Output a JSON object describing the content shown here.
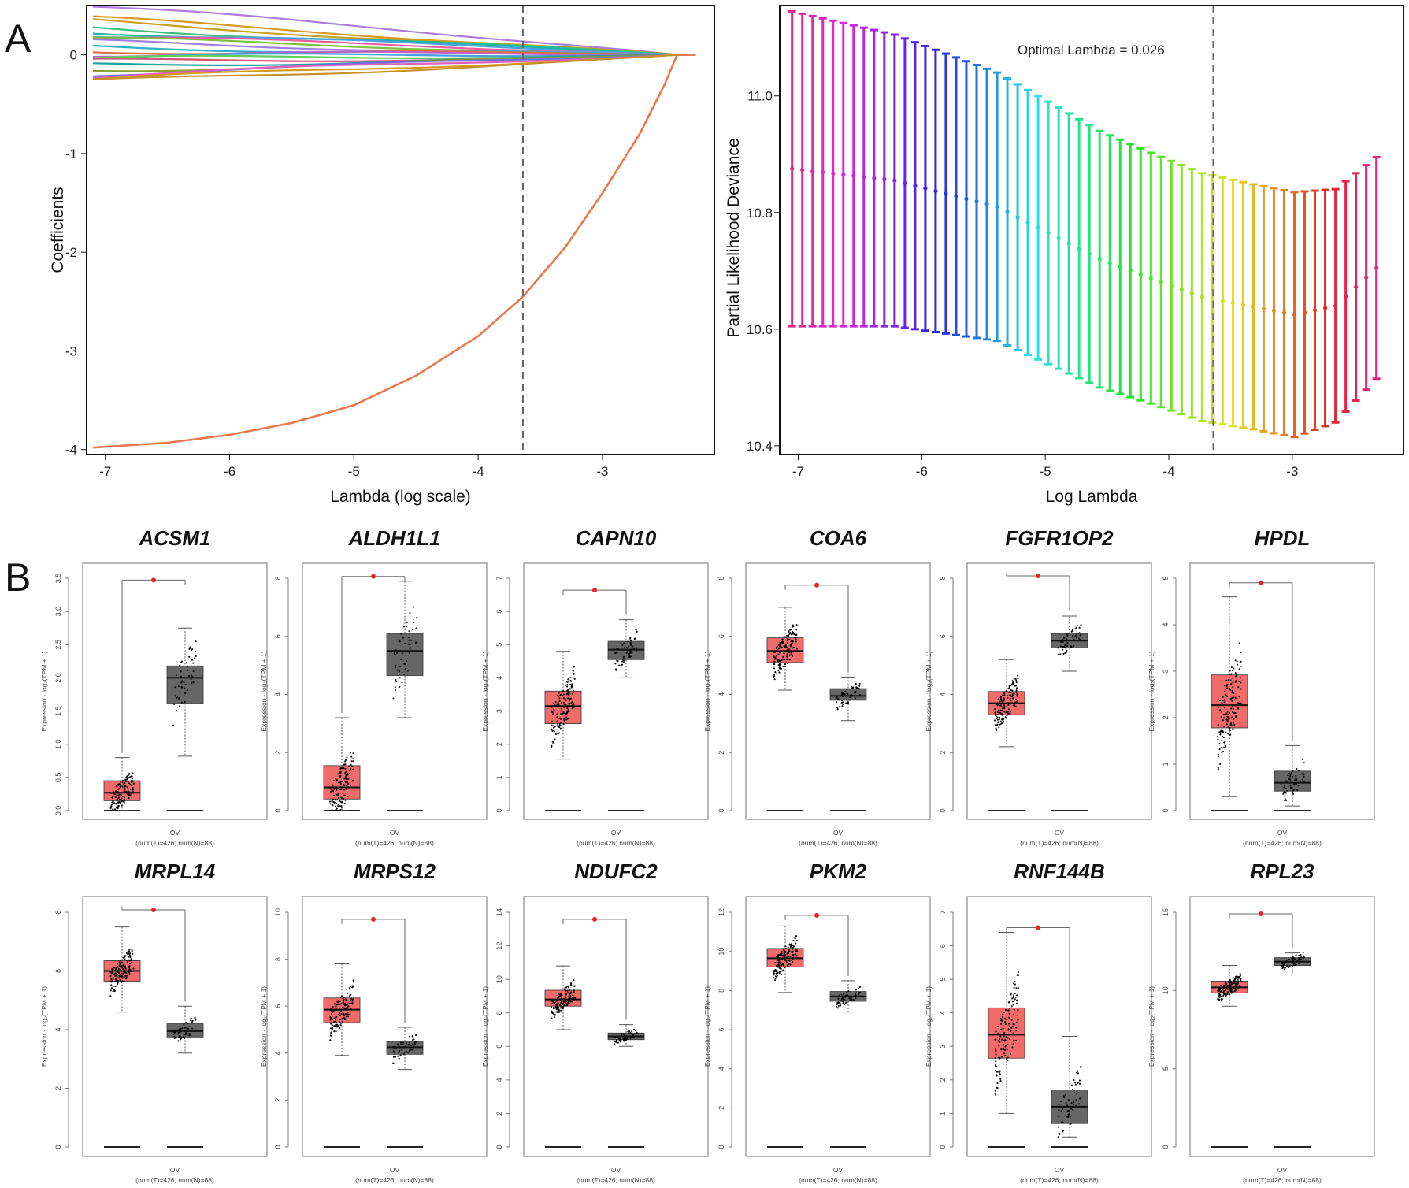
{
  "panel_labels": {
    "a": "A",
    "b": "B"
  },
  "colors": {
    "tumor": "#f26b6b",
    "normal": "#666666",
    "coef_highlight": "#e8784d",
    "frame": "#111111",
    "dash": "#666666",
    "sig_dot": "#ee2222"
  },
  "chart_data": [
    {
      "type": "line",
      "panel": "A-left",
      "xlabel": "Lambda (log scale)",
      "ylabel": "Coefficients",
      "xlim": [
        -7.15,
        -2.1
      ],
      "ylim": [
        -4.05,
        0.5
      ],
      "x_ticks": [
        -7,
        -6,
        -5,
        -4,
        -3
      ],
      "y_ticks": [
        0,
        -1,
        -2,
        -3,
        -4
      ],
      "cutoff_log_lambda": -3.64,
      "converge_log_lambda": -2.4,
      "series": [
        {
          "start": 0.49,
          "color": "#b07cdc"
        },
        {
          "start": 0.36,
          "color": "#d69a1f"
        },
        {
          "start": 0.33,
          "color": "#c8a020"
        },
        {
          "start": 0.28,
          "color": "#3fbf7f"
        },
        {
          "start": 0.25,
          "color": "#19b8a0"
        },
        {
          "start": 0.22,
          "color": "#4aa0e0"
        },
        {
          "start": 0.18,
          "color": "#e85e9e"
        },
        {
          "start": 0.15,
          "color": "#7fbf3f"
        },
        {
          "start": 0.12,
          "color": "#9f7fdf"
        },
        {
          "start": 0.08,
          "color": "#2fb0c8"
        },
        {
          "start": 0.05,
          "color": "#e07040"
        },
        {
          "start": 0.02,
          "color": "#c060d0"
        },
        {
          "start": -0.02,
          "color": "#3f9fdf"
        },
        {
          "start": -0.05,
          "color": "#5fcf5f"
        },
        {
          "start": -0.08,
          "color": "#d05080"
        },
        {
          "start": -0.11,
          "color": "#20a0a0"
        },
        {
          "start": -0.15,
          "color": "#8f9f2f"
        },
        {
          "start": -0.18,
          "color": "#6f6fdf"
        },
        {
          "start": -0.21,
          "color": "#df5fbf"
        },
        {
          "start": -0.26,
          "color": "#d69a1f"
        },
        {
          "start": -0.29,
          "color": "#c8902a"
        }
      ],
      "highlight_series": {
        "color": "#e8784d",
        "x": [
          -7.1,
          -6.5,
          -6.0,
          -5.5,
          -5.0,
          -4.5,
          -4.0,
          -3.64,
          -3.3,
          -3.0,
          -2.7,
          -2.5,
          -2.4
        ],
        "y": [
          -3.98,
          -3.93,
          -3.85,
          -3.73,
          -3.55,
          -3.25,
          -2.85,
          -2.45,
          -1.95,
          -1.4,
          -0.8,
          -0.3,
          0.0
        ]
      }
    },
    {
      "type": "scatter",
      "panel": "A-right",
      "xlabel": "Log Lambda",
      "ylabel": "Partial Likelihood Deviance",
      "annotation": "Optimal Lambda = 0.026",
      "optimal_log_lambda": -3.64,
      "xlim": [
        -7.15,
        -2.1
      ],
      "ylim": [
        10.385,
        11.155
      ],
      "x_ticks": [
        -7,
        -6,
        -5,
        -4,
        -3
      ],
      "y_ticks": [
        "10.4",
        "10.6",
        "10.8",
        "11.0"
      ],
      "x_start": -7.05,
      "x_step": 0.083,
      "count": 58,
      "mean_keypoints": [
        [
          0,
          10.875
        ],
        [
          10,
          10.855
        ],
        [
          20,
          10.81
        ],
        [
          30,
          10.72
        ],
        [
          40,
          10.655
        ],
        [
          49,
          10.625
        ],
        [
          53,
          10.64
        ],
        [
          57,
          10.705
        ]
      ],
      "error_keypoints": [
        [
          0,
          0.27
        ],
        [
          20,
          0.23
        ],
        [
          35,
          0.215
        ],
        [
          45,
          0.21
        ],
        [
          49,
          0.21
        ],
        [
          57,
          0.19
        ]
      ]
    }
  ],
  "boxplots": {
    "y_axis_label": "Expression - log₂(TPM + 1)",
    "x_label": "OV",
    "n_label": "(num(T)=426; num(N)=88)",
    "sig_marker": "*",
    "items": [
      {
        "gene": "ACSM1",
        "ymax": 3.5,
        "ticks": [
          "0.0",
          "0.5",
          "1.0",
          "1.5",
          "2.0",
          "2.5",
          "3.0",
          "3.5"
        ],
        "tumor": {
          "q1": 0.15,
          "median": 0.27,
          "q3": 0.45,
          "lo": 0.0,
          "hi": 0.8,
          "top": 1.75
        },
        "normal": {
          "q1": 1.62,
          "median": 2.0,
          "q3": 2.18,
          "lo": 0.82,
          "hi": 2.75,
          "top": 3.4
        }
      },
      {
        "gene": "ALDH1L1",
        "ymax": 8,
        "ticks": [
          "0",
          "2",
          "4",
          "6",
          "8"
        ],
        "tumor": {
          "q1": 0.4,
          "median": 0.8,
          "q3": 1.55,
          "lo": 0.0,
          "hi": 3.2,
          "top": 5.5
        },
        "normal": {
          "q1": 4.65,
          "median": 5.5,
          "q3": 6.1,
          "lo": 3.2,
          "hi": 7.9,
          "top": 7.9
        }
      },
      {
        "gene": "CAPN10",
        "ymax": 7,
        "ticks": [
          "0",
          "1",
          "2",
          "3",
          "4",
          "5",
          "6",
          "7"
        ],
        "tumor": {
          "q1": 2.62,
          "median": 3.15,
          "q3": 3.6,
          "lo": 1.55,
          "hi": 4.8,
          "top": 6.5
        },
        "normal": {
          "q1": 4.55,
          "median": 4.85,
          "q3": 5.1,
          "lo": 4.0,
          "hi": 5.75,
          "top": 5.75
        }
      },
      {
        "gene": "COA6",
        "ymax": 8,
        "ticks": [
          "0",
          "2",
          "4",
          "6",
          "8"
        ],
        "tumor": {
          "q1": 5.1,
          "median": 5.5,
          "q3": 5.95,
          "lo": 4.15,
          "hi": 7.0,
          "top": 7.6
        },
        "normal": {
          "q1": 3.8,
          "median": 3.95,
          "q3": 4.2,
          "lo": 3.1,
          "hi": 4.6,
          "top": 4.6
        }
      },
      {
        "gene": "FGFR1OP2",
        "ymax": 8,
        "ticks": [
          "0",
          "2",
          "4",
          "6",
          "8"
        ],
        "tumor": {
          "q1": 3.3,
          "median": 3.7,
          "q3": 4.1,
          "lo": 2.2,
          "hi": 5.2,
          "top": 8.2
        },
        "normal": {
          "q1": 5.6,
          "median": 5.85,
          "q3": 6.1,
          "lo": 4.8,
          "hi": 6.7,
          "top": 6.7
        }
      },
      {
        "gene": "HPDL",
        "ymax": 5,
        "ticks": [
          "0",
          "1",
          "2",
          "3",
          "4",
          "5"
        ],
        "tumor": {
          "q1": 1.78,
          "median": 2.27,
          "q3": 2.92,
          "lo": 0.3,
          "hi": 4.6,
          "top": 4.8
        },
        "normal": {
          "q1": 0.42,
          "median": 0.6,
          "q3": 0.85,
          "lo": 0.1,
          "hi": 1.4,
          "top": 1.75
        }
      },
      {
        "gene": "MRPL14",
        "ymax": 8,
        "ticks": [
          "0",
          "2",
          "4",
          "6",
          "8"
        ],
        "tumor": {
          "q1": 5.65,
          "median": 6.0,
          "q3": 6.35,
          "lo": 4.6,
          "hi": 7.5,
          "top": 8.2
        },
        "normal": {
          "q1": 3.75,
          "median": 3.95,
          "q3": 4.2,
          "lo": 3.2,
          "hi": 4.8,
          "top": 4.8
        }
      },
      {
        "gene": "MRPS12",
        "ymax": 10,
        "ticks": [
          "0",
          "2",
          "4",
          "6",
          "8",
          "10"
        ],
        "tumor": {
          "q1": 5.3,
          "median": 5.85,
          "q3": 6.35,
          "lo": 3.9,
          "hi": 7.8,
          "top": 9.5
        },
        "normal": {
          "q1": 3.95,
          "median": 4.25,
          "q3": 4.5,
          "lo": 3.3,
          "hi": 5.1,
          "top": 5.1
        }
      },
      {
        "gene": "NDUFC2",
        "ymax": 14,
        "ticks": [
          "0",
          "2",
          "4",
          "6",
          "8",
          "10",
          "12",
          "14"
        ],
        "tumor": {
          "q1": 8.4,
          "median": 8.8,
          "q3": 9.35,
          "lo": 7.0,
          "hi": 10.8,
          "top": 13.3
        },
        "normal": {
          "q1": 6.4,
          "median": 6.6,
          "q3": 6.8,
          "lo": 6.0,
          "hi": 7.3,
          "top": 7.3
        }
      },
      {
        "gene": "PKM2",
        "ymax": 12,
        "ticks": [
          "0",
          "2",
          "4",
          "6",
          "8",
          "10",
          "12"
        ],
        "tumor": {
          "q1": 9.2,
          "median": 9.65,
          "q3": 10.15,
          "lo": 7.9,
          "hi": 11.3,
          "top": 11.6
        },
        "normal": {
          "q1": 7.45,
          "median": 7.7,
          "q3": 7.95,
          "lo": 6.9,
          "hi": 8.5,
          "top": 8.6
        }
      },
      {
        "gene": "RNF144B",
        "ymax": 7,
        "ticks": [
          "0",
          "1",
          "2",
          "3",
          "4",
          "5",
          "6",
          "7"
        ],
        "tumor": {
          "q1": 2.65,
          "median": 3.35,
          "q3": 4.15,
          "lo": 1.0,
          "hi": 6.4,
          "top": 6.4
        },
        "normal": {
          "q1": 0.7,
          "median": 1.2,
          "q3": 1.7,
          "lo": 0.3,
          "hi": 3.3,
          "top": 3.3
        }
      },
      {
        "gene": "RPL23",
        "ymax": 15,
        "ticks": [
          "0",
          "5",
          "10",
          "15"
        ],
        "tumor": {
          "q1": 9.85,
          "median": 10.2,
          "q3": 10.6,
          "lo": 9.0,
          "hi": 11.6,
          "top": 14.6
        },
        "normal": {
          "q1": 11.6,
          "median": 11.85,
          "q3": 12.1,
          "lo": 11.0,
          "hi": 12.4,
          "top": 12.5
        }
      }
    ]
  }
}
